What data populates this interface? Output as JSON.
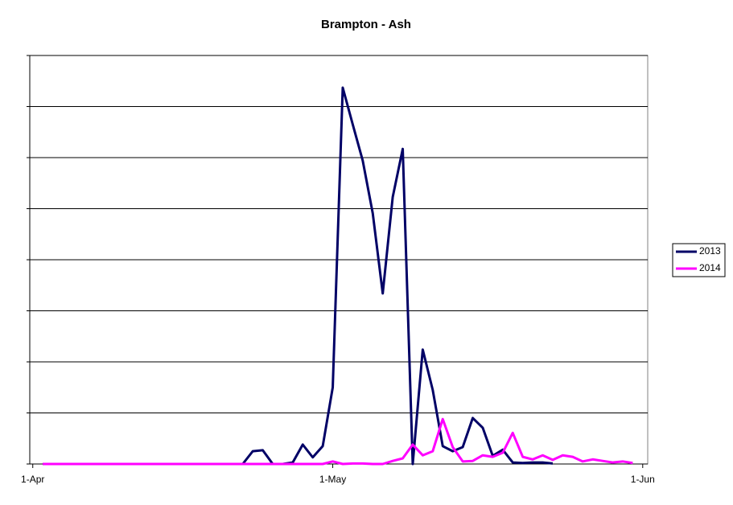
{
  "chart_data": {
    "type": "line",
    "title": "Brampton - Ash",
    "x": [
      1,
      2,
      3,
      4,
      5,
      6,
      7,
      8,
      9,
      10,
      11,
      12,
      13,
      14,
      15,
      16,
      17,
      18,
      19,
      20,
      21,
      22,
      23,
      24,
      25,
      26,
      27,
      28,
      29,
      30,
      31,
      32,
      33,
      34,
      35,
      36,
      37,
      38,
      39,
      40,
      41,
      42,
      43,
      44,
      45,
      46,
      47,
      48,
      49,
      50,
      51,
      52,
      53,
      54,
      55,
      56,
      57,
      58,
      59,
      60
    ],
    "series": [
      {
        "name": "2013",
        "color": "#000066",
        "values": [
          0,
          0,
          0,
          0,
          0,
          0,
          0,
          0,
          0,
          0,
          0,
          0,
          0,
          0,
          0,
          0,
          0,
          0,
          0,
          0,
          0,
          0.25,
          0.27,
          0,
          0,
          0.03,
          0.38,
          0.13,
          0.35,
          1.5,
          7.37,
          6.65,
          5.94,
          4.91,
          3.34,
          5.23,
          6.17,
          0,
          2.24,
          1.45,
          0.35,
          0.25,
          0.33,
          0.9,
          0.71,
          0.16,
          0.28,
          0.03,
          0.02,
          0.03,
          0.03,
          0.01,
          null,
          null,
          null,
          null,
          null,
          null,
          null,
          null
        ]
      },
      {
        "name": "2014",
        "color": "#ff00ff",
        "values": [
          0,
          0,
          0,
          0,
          0,
          0,
          0,
          0,
          0,
          0,
          0,
          0,
          0,
          0,
          0,
          0,
          0,
          0,
          0,
          0,
          0,
          0,
          0,
          0,
          0,
          0,
          0,
          0,
          0,
          0.05,
          0,
          0.01,
          0.01,
          0,
          0,
          0.06,
          0.11,
          0.38,
          0.17,
          0.25,
          0.88,
          0.33,
          0.05,
          0.06,
          0.17,
          0.14,
          0.22,
          0.61,
          0.14,
          0.09,
          0.17,
          0.08,
          0.17,
          0.14,
          0.05,
          0.09,
          0.06,
          0.03,
          0.05,
          0.02
        ]
      }
    ],
    "xlim": [
      -0.3,
      61.5
    ],
    "xticks": [
      {
        "value": 0,
        "label": "1-Apr"
      },
      {
        "value": 30,
        "label": "1-May"
      },
      {
        "value": 61,
        "label": "1-Jun"
      }
    ],
    "ylim": [
      0,
      8
    ],
    "yticks": [
      0,
      1,
      2,
      3,
      4,
      5,
      6,
      7,
      8
    ],
    "grid": true,
    "legend": "right"
  }
}
